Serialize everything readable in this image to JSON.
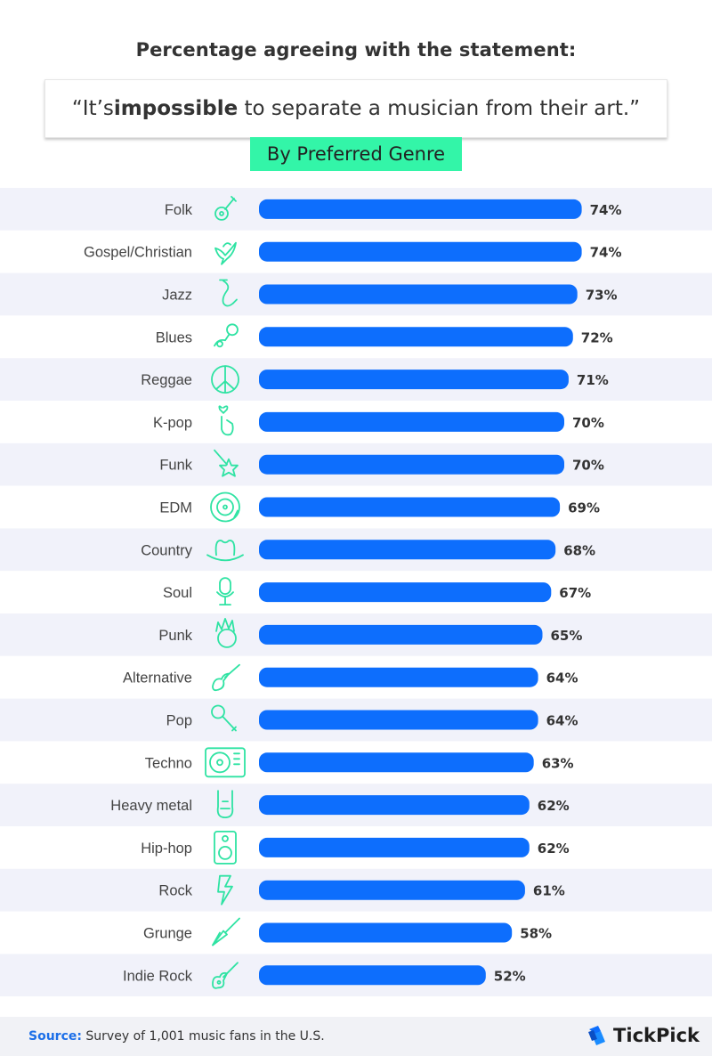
{
  "header": {
    "title": "Percentage agreeing with the statement:",
    "quote_open": "“It’s ",
    "quote_bold": "impossible",
    "quote_close": " to separate a musician from their art.”",
    "subtitle_pill": "By Preferred Genre"
  },
  "chart_data": {
    "type": "bar",
    "orientation": "horizontal",
    "categories": [
      "Folk",
      "Gospel/Christian",
      "Jazz",
      "Blues",
      "Reggae",
      "K-pop",
      "Funk",
      "EDM",
      "Country",
      "Soul",
      "Punk",
      "Alternative",
      "Pop",
      "Techno",
      "Heavy metal",
      "Hip-hop",
      "Rock",
      "Grunge",
      "Indie Rock"
    ],
    "values": [
      74,
      74,
      73,
      72,
      71,
      70,
      70,
      69,
      68,
      67,
      65,
      64,
      64,
      63,
      62,
      62,
      61,
      58,
      52
    ],
    "value_labels": [
      "74%",
      "74%",
      "73%",
      "72%",
      "71%",
      "70%",
      "70%",
      "69%",
      "68%",
      "67%",
      "65%",
      "64%",
      "64%",
      "63%",
      "62%",
      "62%",
      "61%",
      "58%",
      "52%"
    ],
    "icons": [
      "acoustic-guitar-icon",
      "dove-icon",
      "saxophone-icon",
      "guitar-microphone-icon",
      "peace-sign-icon",
      "finger-heart-icon",
      "star-guitar-icon",
      "vinyl-record-icon",
      "cowboy-hat-icon",
      "studio-microphone-icon",
      "punk-mohawk-icon",
      "electric-guitar-icon",
      "handheld-microphone-icon",
      "turntable-icon",
      "rock-hand-icon",
      "speaker-icon",
      "lightning-bolt-icon",
      "flying-v-guitar-icon",
      "bass-guitar-icon"
    ],
    "xlim": [
      0,
      100
    ],
    "bar_color": "#0d6efd",
    "icon_color": "#2fe3a3"
  },
  "footer": {
    "source_label": "Source:",
    "source_text": " Survey of 1,001 music fans in the U.S.",
    "brand": "TickPick"
  },
  "colors": {
    "accent_pill": "#33f5a8",
    "row_alt": "#f1f2fa",
    "source_label": "#1c6fe8"
  }
}
